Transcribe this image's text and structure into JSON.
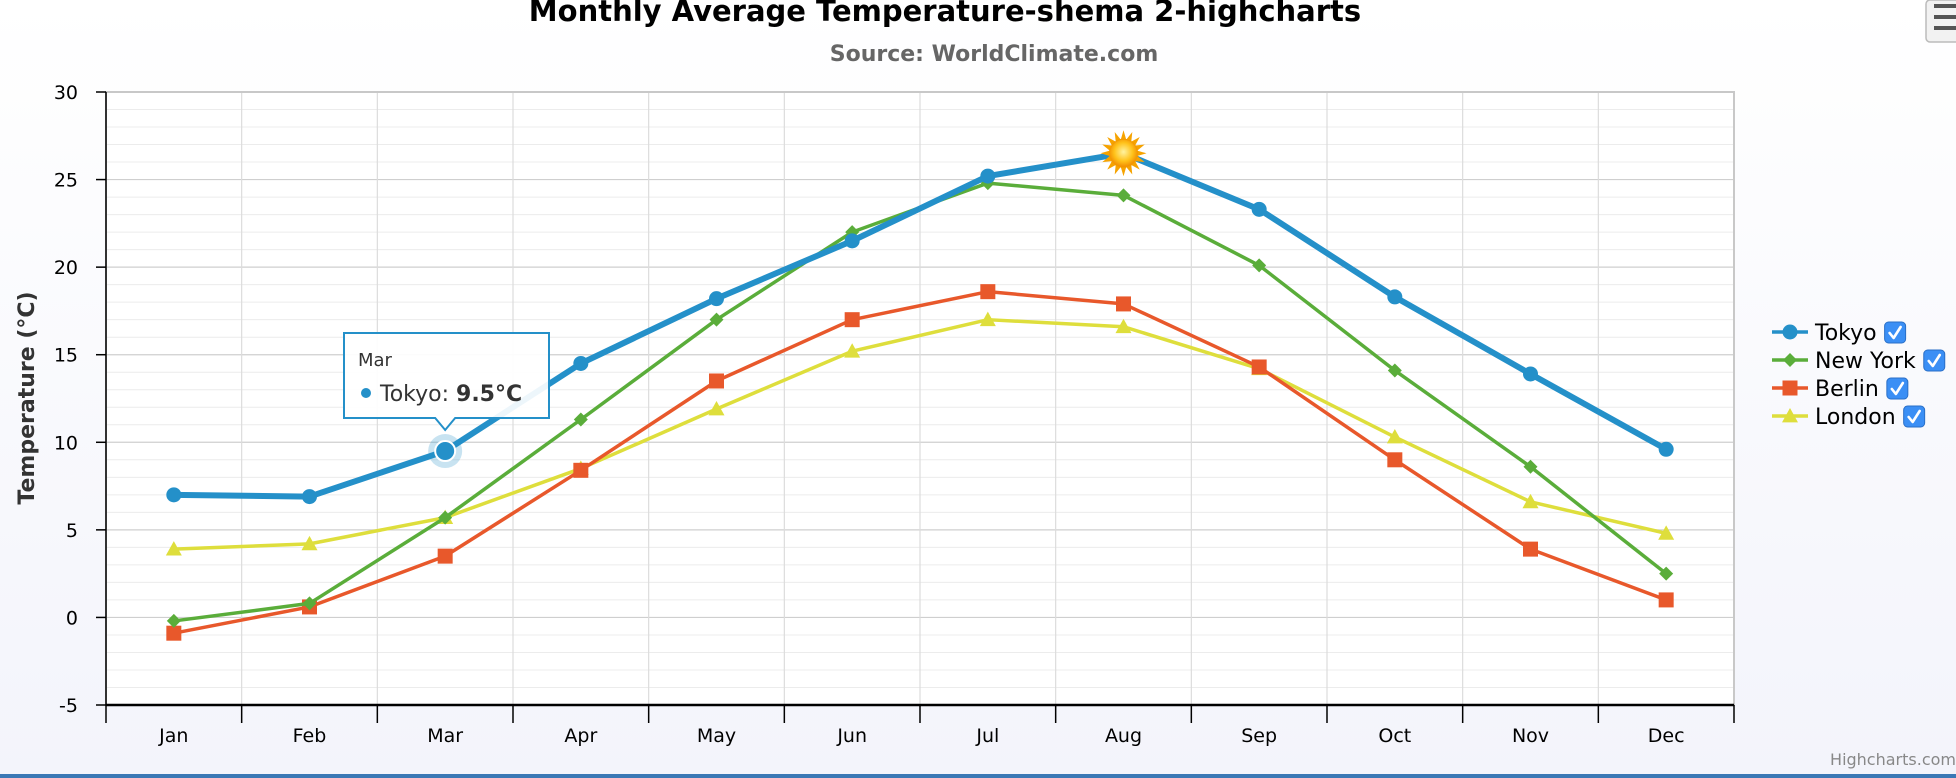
{
  "chart_data": {
    "type": "line",
    "title": "Monthly Average Temperature-shema 2-highcharts",
    "subtitle": "Source: WorldClimate.com",
    "xlabel": "",
    "ylabel": "Temperature (°C)",
    "ylim": [
      -5,
      30
    ],
    "yticks": [
      -5,
      0,
      5,
      10,
      15,
      20,
      25,
      30
    ],
    "categories": [
      "Jan",
      "Feb",
      "Mar",
      "Apr",
      "May",
      "Jun",
      "Jul",
      "Aug",
      "Sep",
      "Oct",
      "Nov",
      "Dec"
    ],
    "grid": true,
    "legend_position": "right",
    "series": [
      {
        "name": "Tokyo",
        "color": "#2490c9",
        "marker": "circle",
        "values": [
          7.0,
          6.9,
          9.5,
          14.5,
          18.2,
          21.5,
          25.2,
          26.5,
          23.3,
          18.3,
          13.9,
          9.6
        ]
      },
      {
        "name": "New York",
        "color": "#5aad3a",
        "marker": "diamond",
        "values": [
          -0.2,
          0.8,
          5.7,
          11.3,
          17.0,
          22.0,
          24.8,
          24.1,
          20.1,
          14.1,
          8.6,
          2.5
        ]
      },
      {
        "name": "Berlin",
        "color": "#e8582b",
        "marker": "square",
        "values": [
          -0.9,
          0.6,
          3.5,
          8.4,
          13.5,
          17.0,
          18.6,
          17.9,
          14.3,
          9.0,
          3.9,
          1.0
        ]
      },
      {
        "name": "London",
        "color": "#dede3c",
        "marker": "triangle",
        "values": [
          3.9,
          4.2,
          5.7,
          8.5,
          11.9,
          15.2,
          17.0,
          16.6,
          14.2,
          10.3,
          6.6,
          4.8
        ]
      }
    ],
    "annotation": {
      "series": "Tokyo",
      "category": "Aug",
      "symbol": "sun-icon"
    },
    "tooltip": {
      "header": "Mar",
      "series": "Tokyo",
      "label": "Tokyo: ",
      "value": "9.5°C"
    }
  },
  "credits": "Highcharts.com",
  "menu_icon": "hamburger-menu-icon"
}
